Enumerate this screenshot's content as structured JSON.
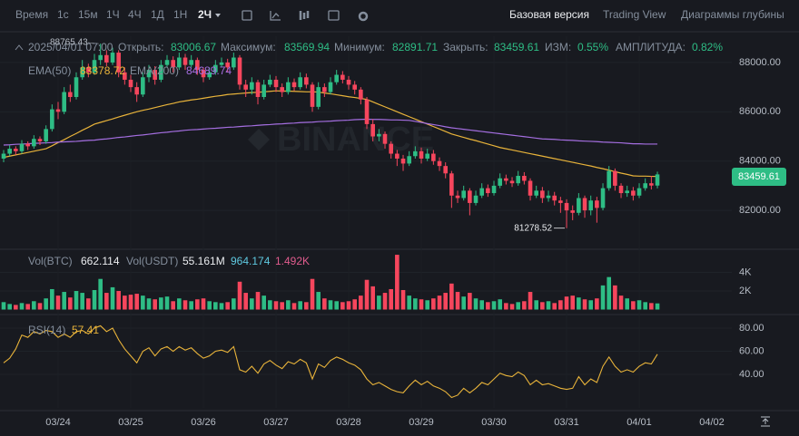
{
  "toolbar": {
    "intervals": [
      "Время",
      "1с",
      "15м",
      "1Ч",
      "4Ч",
      "1Д",
      "1Н"
    ],
    "active": "2Ч",
    "views": [
      "Базовая версия",
      "Trading View",
      "Диаграммы глубины"
    ]
  },
  "info": {
    "time": "2025/04/01 07:00",
    "open_label": "Открыть:",
    "high_label": "Максимум:",
    "low_label": "Минимум:",
    "close_label": "Закрыть:",
    "change_label": "ИЗМ:",
    "change": "0.55%",
    "amplitude_label": "АМПЛИТУДА:",
    "amplitude": "0.82%"
  },
  "watermark": "BINANCE",
  "chart_data": [
    {
      "type": "candlestick",
      "up_color": "#2ebd85",
      "down_color": "#f6465d",
      "categories": [
        null,
        null,
        null,
        null,
        null,
        null,
        null,
        null,
        null,
        "03/24",
        null,
        null,
        null,
        null,
        null,
        null,
        null,
        null,
        null,
        null,
        null,
        "03/25",
        null,
        null,
        null,
        null,
        null,
        null,
        null,
        null,
        null,
        null,
        null,
        "03/26",
        null,
        null,
        null,
        null,
        null,
        null,
        null,
        null,
        null,
        null,
        null,
        "03/27",
        null,
        null,
        null,
        null,
        null,
        null,
        null,
        null,
        null,
        null,
        null,
        "03/28",
        null,
        null,
        null,
        null,
        null,
        null,
        null,
        null,
        null,
        null,
        null,
        "03/29",
        null,
        null,
        null,
        null,
        null,
        null,
        null,
        null,
        null,
        null,
        null,
        "03/30",
        null,
        null,
        null,
        null,
        null,
        null,
        null,
        null,
        null,
        null,
        null,
        "03/31",
        null,
        null,
        null,
        null,
        null,
        null,
        null,
        null,
        null,
        null,
        null,
        "04/01",
        null,
        null,
        null
      ],
      "axis_end_label": "04/02",
      "open": [
        84100,
        84300,
        84500,
        84400,
        84700,
        84600,
        84900,
        84800,
        85300,
        86100,
        86000,
        86800,
        86600,
        87400,
        87800,
        87600,
        88100,
        88300,
        88000,
        88400,
        87600,
        87300,
        87000,
        86700,
        87400,
        87700,
        87300,
        87900,
        88100,
        87800,
        88200,
        87900,
        88100,
        87700,
        87400,
        87600,
        87900,
        88000,
        87800,
        88200,
        87100,
        86900,
        87200,
        86600,
        87100,
        87300,
        87000,
        86800,
        87200,
        87000,
        87400,
        87100,
        86200,
        87000,
        86800,
        87200,
        87500,
        87300,
        87100,
        86900,
        86500,
        85500,
        85000,
        85100,
        84700,
        84300,
        84100,
        83900,
        84200,
        84400,
        84100,
        84300,
        84000,
        83800,
        83500,
        82600,
        82500,
        82800,
        82300,
        82600,
        82900,
        82700,
        83000,
        83300,
        83200,
        83100,
        83400,
        83200,
        82600,
        82800,
        82500,
        82600,
        82400,
        82300,
        82000,
        81900,
        82500,
        82000,
        82400,
        82100,
        82900,
        83600,
        83000,
        82700,
        82800,
        82600,
        82900,
        83100,
        83006.67
      ],
      "high": [
        84450,
        84650,
        84600,
        84850,
        84800,
        85050,
        85000,
        85450,
        86300,
        86400,
        87000,
        87100,
        87600,
        88100,
        87950,
        88350,
        88765.43,
        88500,
        88600,
        88500,
        87800,
        87500,
        87200,
        87600,
        87900,
        87850,
        88100,
        88300,
        88250,
        88400,
        88350,
        88300,
        88200,
        87800,
        87800,
        88100,
        88200,
        88150,
        88400,
        88300,
        87300,
        87400,
        87300,
        87300,
        87500,
        87450,
        87150,
        87400,
        87350,
        87600,
        87550,
        87200,
        87200,
        87150,
        87400,
        87700,
        87650,
        87450,
        87250,
        87000,
        86600,
        85700,
        85300,
        85200,
        84800,
        84450,
        84250,
        84400,
        84600,
        84550,
        84500,
        84450,
        84150,
        83950,
        83600,
        82800,
        83000,
        82900,
        82800,
        83100,
        83050,
        83200,
        83500,
        83450,
        83350,
        83600,
        83550,
        83300,
        83000,
        82950,
        82800,
        82750,
        82550,
        82450,
        82200,
        82700,
        82600,
        82600,
        82550,
        83100,
        83800,
        83700,
        83100,
        83000,
        82950,
        83100,
        83300,
        83400,
        83569.94
      ],
      "low": [
        83950,
        84200,
        84250,
        84300,
        84450,
        84500,
        84650,
        84700,
        85200,
        85700,
        85900,
        86400,
        86500,
        87300,
        87400,
        87500,
        87900,
        87850,
        87900,
        87400,
        87100,
        86800,
        86400,
        86600,
        87200,
        87100,
        87200,
        87800,
        87600,
        87700,
        87700,
        87800,
        87500,
        87200,
        87300,
        87500,
        87800,
        87600,
        87700,
        86900,
        86600,
        86700,
        86300,
        86500,
        87000,
        86800,
        86600,
        86700,
        86850,
        86900,
        86950,
        86000,
        86100,
        86600,
        86700,
        87100,
        87150,
        86900,
        86700,
        86300,
        85300,
        84800,
        84800,
        84500,
        84100,
        83800,
        83600,
        83800,
        84100,
        83900,
        84000,
        83850,
        83600,
        83300,
        82100,
        82300,
        82400,
        81800,
        82200,
        82500,
        82550,
        82600,
        82900,
        83050,
        82950,
        83000,
        83050,
        82400,
        82500,
        82300,
        82350,
        82200,
        81900,
        81278.52,
        81600,
        81800,
        81700,
        81800,
        81500,
        82000,
        82800,
        82800,
        82500,
        82550,
        82400,
        82500,
        82800,
        82850,
        82891.71
      ],
      "close": [
        84300,
        84500,
        84400,
        84700,
        84600,
        84900,
        84800,
        85300,
        86100,
        86000,
        86800,
        86600,
        87400,
        87800,
        87600,
        88100,
        88300,
        88000,
        88400,
        87600,
        87300,
        87000,
        86700,
        87400,
        87700,
        87300,
        87900,
        88100,
        87800,
        88200,
        87900,
        88100,
        87700,
        87400,
        87600,
        87900,
        88000,
        87800,
        88200,
        87100,
        86900,
        87200,
        86600,
        87100,
        87300,
        87000,
        86800,
        87200,
        87000,
        87400,
        87100,
        86200,
        87000,
        86800,
        87200,
        87500,
        87300,
        87100,
        86900,
        86500,
        85500,
        85000,
        85100,
        84700,
        84300,
        84100,
        83900,
        84200,
        84400,
        84100,
        84300,
        84000,
        83800,
        83500,
        82600,
        82500,
        82800,
        82300,
        82600,
        82900,
        82700,
        83000,
        83300,
        83200,
        83100,
        83400,
        83200,
        82600,
        82800,
        82500,
        82600,
        82400,
        82300,
        82000,
        81900,
        82500,
        82000,
        82400,
        82100,
        82900,
        83600,
        83000,
        82700,
        82800,
        82600,
        82900,
        83100,
        83006.67,
        83459.61
      ],
      "lines": [
        {
          "name": "EMA(50)",
          "color": "#e8b33a",
          "values": [
            84150,
            84200,
            84250,
            84300,
            84350,
            84400,
            84450,
            84500,
            84620,
            84750,
            84870,
            85000,
            85120,
            85250,
            85370,
            85500,
            85570,
            85640,
            85710,
            85790,
            85860,
            85930,
            86000,
            86060,
            86110,
            86170,
            86230,
            86290,
            86340,
            86400,
            86440,
            86480,
            86510,
            86550,
            86590,
            86630,
            86660,
            86700,
            86720,
            86740,
            86760,
            86780,
            86790,
            86810,
            86830,
            86850,
            86840,
            86840,
            86830,
            86820,
            86810,
            86810,
            86800,
            86760,
            86730,
            86690,
            86650,
            86610,
            86580,
            86540,
            86500,
            86400,
            86300,
            86200,
            86100,
            86000,
            85900,
            85800,
            85700,
            85600,
            85500,
            85400,
            85300,
            85200,
            85100,
            85030,
            84960,
            84890,
            84830,
            84760,
            84690,
            84620,
            84550,
            84500,
            84450,
            84400,
            84350,
            84300,
            84250,
            84200,
            84150,
            84100,
            84050,
            84000,
            83950,
            83900,
            83850,
            83800,
            83740,
            83690,
            83630,
            83570,
            83510,
            83460,
            83400,
            83390,
            83390,
            83380,
            83378.72
          ]
        },
        {
          "name": "EMA(200)",
          "color": "#a46ee0",
          "values": [
            84650,
            84660,
            84680,
            84690,
            84700,
            84720,
            84730,
            84740,
            84750,
            84770,
            84780,
            84790,
            84800,
            84820,
            84840,
            84850,
            84880,
            84900,
            84930,
            84960,
            84980,
            85010,
            85040,
            85060,
            85090,
            85120,
            85150,
            85170,
            85200,
            85220,
            85250,
            85270,
            85280,
            85300,
            85320,
            85330,
            85350,
            85370,
            85380,
            85400,
            85420,
            85430,
            85450,
            85470,
            85480,
            85500,
            85510,
            85530,
            85540,
            85560,
            85570,
            85580,
            85600,
            85610,
            85620,
            85640,
            85650,
            85660,
            85680,
            85690,
            85700,
            85690,
            85690,
            85680,
            85670,
            85670,
            85660,
            85650,
            85610,
            85570,
            85520,
            85480,
            85440,
            85390,
            85350,
            85320,
            85290,
            85260,
            85230,
            85200,
            85170,
            85140,
            85110,
            85080,
            85050,
            85020,
            84990,
            84960,
            84930,
            84900,
            84890,
            84880,
            84860,
            84850,
            84840,
            84820,
            84810,
            84800,
            84790,
            84770,
            84760,
            84750,
            84740,
            84720,
            84700,
            84700,
            84690,
            84690,
            84689.74
          ]
        }
      ],
      "ylim": [
        80532,
        89064
      ],
      "yticks": [
        {
          "value": 82000,
          "label": "82000.00"
        },
        {
          "value": 84000,
          "label": "84000.00"
        },
        {
          "value": 86000,
          "label": "86000.00"
        },
        {
          "value": 88000,
          "label": "88000.00"
        }
      ],
      "grid": true
    },
    {
      "type": "bar",
      "name": "Vol(BTC)",
      "values": [
        800,
        600,
        500,
        700,
        600,
        900,
        700,
        1200,
        2200,
        1500,
        1900,
        1300,
        2000,
        1800,
        1200,
        2100,
        3300,
        1800,
        2400,
        2000,
        1500,
        1600,
        1700,
        1500,
        1200,
        1100,
        1300,
        1400,
        900,
        1200,
        1000,
        900,
        1100,
        1200,
        900,
        800,
        700,
        800,
        1200,
        3000,
        1800,
        1200,
        1900,
        1500,
        1000,
        900,
        800,
        1000,
        700,
        900,
        800,
        3300,
        1900,
        1200,
        1000,
        900,
        800,
        900,
        1100,
        1500,
        3200,
        2500,
        1500,
        1800,
        2200,
        5900,
        2100,
        1500,
        1200,
        1100,
        1000,
        1200,
        1500,
        1800,
        2800,
        1900,
        1400,
        1800,
        1200,
        1000,
        800,
        900,
        1100,
        700,
        600,
        800,
        900,
        1900,
        1000,
        800,
        900,
        700,
        1000,
        1400,
        1500,
        1300,
        1100,
        1000,
        1200,
        2600,
        3500,
        2600,
        1500,
        1200,
        900,
        1000,
        800,
        700,
        662.114
      ],
      "legend_items": [
        "Vol(USDT)",
        "55.161M",
        "964.174",
        "1.492K"
      ],
      "legend_colors": [
        "#848e9c",
        "#eaecef",
        "#5fc9e0",
        "#e15c8e"
      ],
      "ylim": [
        0,
        6200
      ],
      "yticks": [
        {
          "value": 2000,
          "label": "2K"
        },
        {
          "value": 4000,
          "label": "4K"
        }
      ]
    },
    {
      "type": "line",
      "name": "RSI(14)",
      "color": "#e8b33a",
      "values": [
        50,
        54,
        62,
        74,
        72,
        77,
        75,
        78,
        77,
        72,
        75,
        72,
        77,
        78,
        75,
        80,
        82,
        77,
        80,
        70,
        62,
        56,
        50,
        60,
        63,
        56,
        62,
        64,
        60,
        64,
        61,
        63,
        58,
        54,
        56,
        60,
        61,
        59,
        64,
        44,
        42,
        47,
        41,
        49,
        52,
        48,
        45,
        51,
        49,
        53,
        50,
        36,
        49,
        46,
        52,
        55,
        53,
        50,
        48,
        44,
        36,
        31,
        33,
        30,
        27,
        25,
        24,
        30,
        35,
        31,
        34,
        30,
        28,
        25,
        20,
        22,
        28,
        24,
        28,
        33,
        31,
        36,
        41,
        39,
        38,
        42,
        39,
        31,
        35,
        31,
        32,
        30,
        28,
        27,
        28,
        38,
        31,
        36,
        33,
        47,
        55,
        47,
        42,
        44,
        42,
        47,
        50,
        49,
        57.41
      ],
      "ylim": [
        11,
        89.4
      ],
      "yticks": [
        {
          "value": 40,
          "label": "40.00"
        },
        {
          "value": 60,
          "label": "60.00"
        },
        {
          "value": 80,
          "label": "80.00"
        }
      ]
    }
  ]
}
